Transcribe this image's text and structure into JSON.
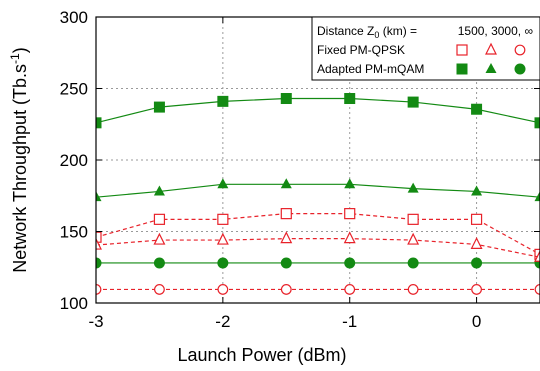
{
  "chart_data": {
    "type": "line",
    "xlabel": "Launch Power (dBm)",
    "ylabel": "Network Throughput (Tb.s",
    "ylabel_sup": "-1",
    "ylabel_suffix": ")",
    "xlim": [
      -3,
      0.5
    ],
    "ylim": [
      100,
      300
    ],
    "xticks": [
      -3,
      -2,
      -1,
      0
    ],
    "yticks": [
      100,
      150,
      200,
      250,
      300
    ],
    "grid": "dashed",
    "legend_position": "top-right",
    "legend": {
      "header_label_pre": "Distance Z",
      "header_label_sub": "0",
      "header_label_post": " (km) =",
      "header_values": "1500, 3000, ∞",
      "fixed_label": "Fixed PM-QPSK",
      "adapted_label": "Adapted PM-mQAM"
    },
    "colors": {
      "fixed": "#e8222a",
      "adapted": "#138a13"
    },
    "x": [
      -3,
      -2.5,
      -2,
      -1.5,
      -1,
      -0.5,
      0,
      0.5
    ],
    "series": [
      {
        "group": "adapted",
        "distance": "1500",
        "marker": "square",
        "filled": true,
        "dash": false,
        "values": [
          226,
          237,
          241,
          243,
          243,
          240.5,
          235.5,
          226
        ]
      },
      {
        "group": "adapted",
        "distance": "3000",
        "marker": "triangle",
        "filled": true,
        "dash": false,
        "values": [
          174,
          178,
          183,
          183,
          183,
          180,
          178,
          174
        ]
      },
      {
        "group": "adapted",
        "distance": "∞",
        "marker": "circle",
        "filled": true,
        "dash": false,
        "values": [
          128,
          128,
          128,
          128,
          128,
          128,
          128,
          128
        ]
      },
      {
        "group": "fixed",
        "distance": "1500",
        "marker": "square",
        "filled": false,
        "dash": true,
        "values": [
          146,
          158.5,
          158.5,
          162.5,
          162.5,
          158.5,
          158.5,
          134
        ]
      },
      {
        "group": "fixed",
        "distance": "3000",
        "marker": "triangle",
        "filled": false,
        "dash": true,
        "values": [
          140.5,
          144,
          144,
          145,
          145,
          144,
          141,
          132
        ]
      },
      {
        "group": "fixed",
        "distance": "∞",
        "marker": "circle",
        "filled": false,
        "dash": true,
        "values": [
          109.5,
          109.5,
          109.5,
          109.5,
          109.5,
          109.5,
          109.5,
          109.5
        ]
      }
    ]
  }
}
